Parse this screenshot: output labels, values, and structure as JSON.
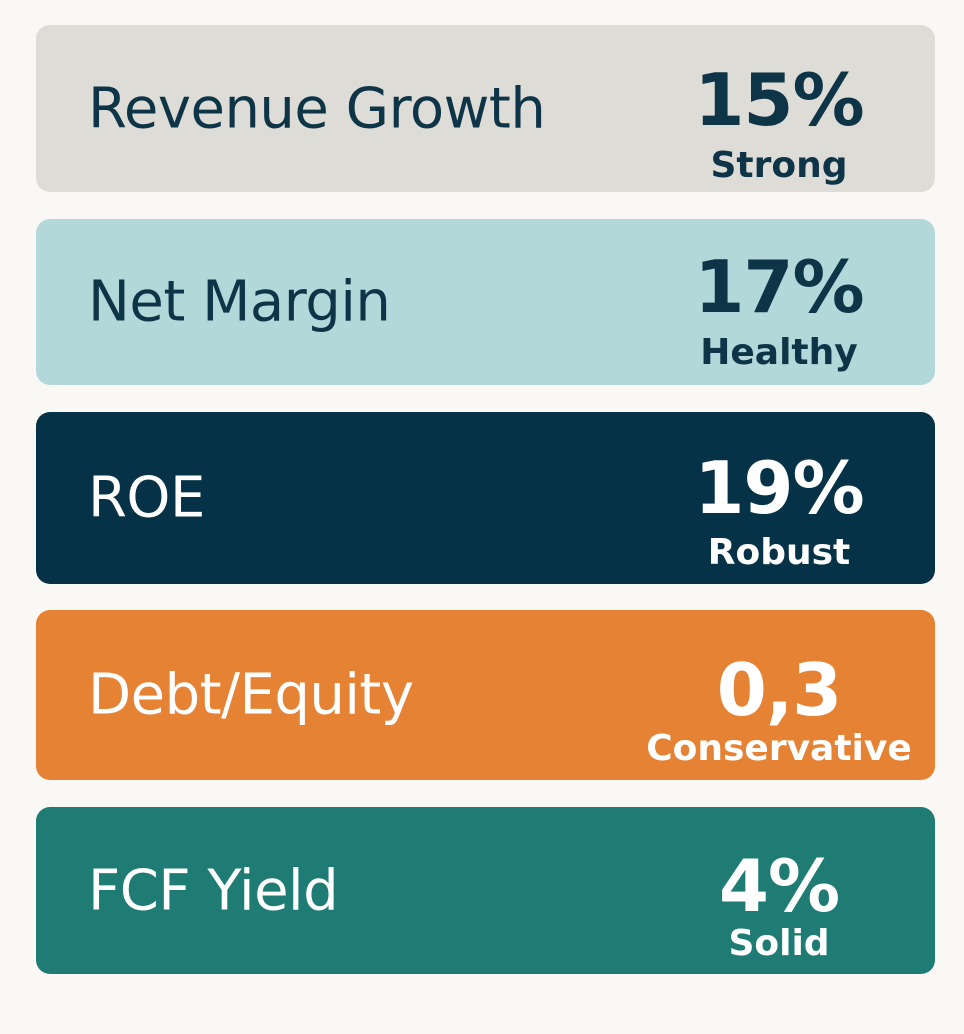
{
  "metrics": [
    {
      "label": "Revenue Growth",
      "value": "15%",
      "rating": "Strong",
      "bg": "#dedcd6",
      "fg": "#0e3447"
    },
    {
      "label": "Net Margin",
      "value": "17%",
      "rating": "Healthy",
      "bg": "#b3d8da",
      "fg": "#0e3447"
    },
    {
      "label": "ROE",
      "value": "19%",
      "rating": "Robust",
      "bg": "#063247",
      "fg": "#ffffff"
    },
    {
      "label": "Debt/Equity",
      "value": "0,3",
      "rating": "Conservative",
      "bg": "#e68233",
      "fg": "#ffffff"
    },
    {
      "label": "FCF Yield",
      "value": "4%",
      "rating": "Solid",
      "bg": "#1e7c75",
      "fg": "#ffffff"
    }
  ]
}
